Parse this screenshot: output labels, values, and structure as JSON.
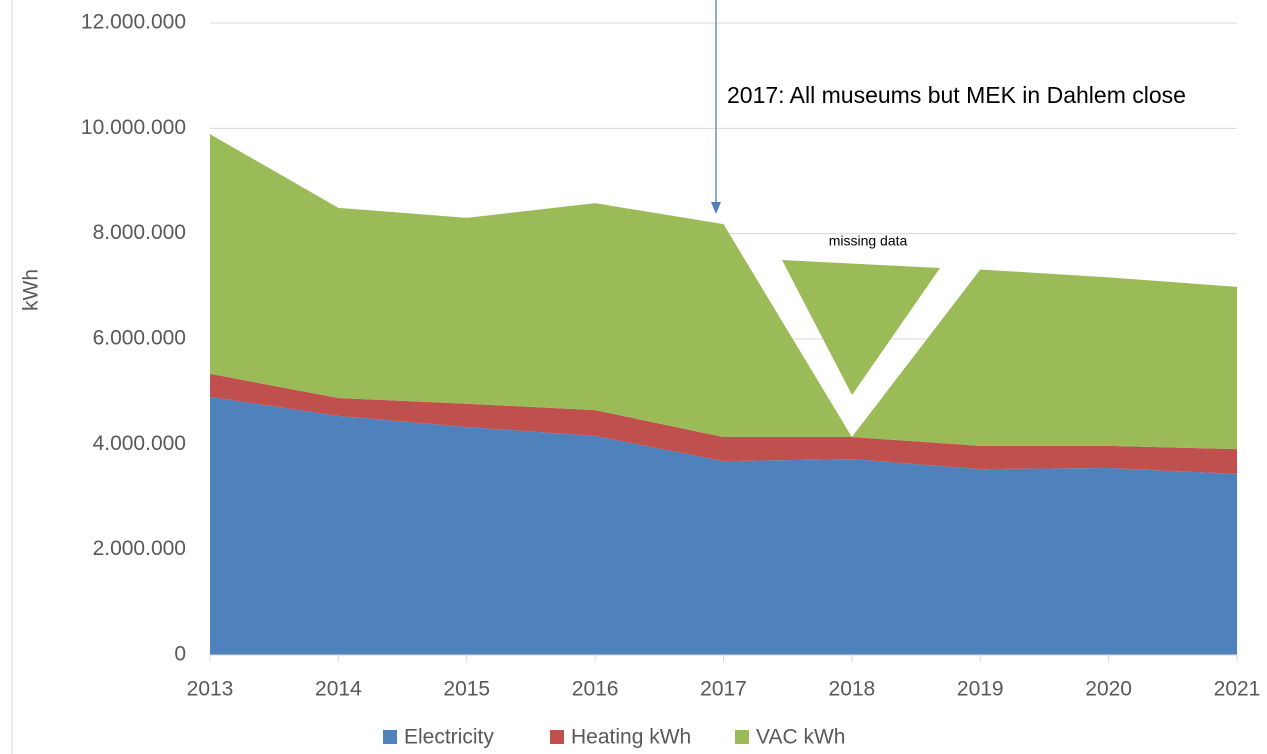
{
  "chart_data": {
    "type": "area",
    "stacked": true,
    "y_label": "kWh",
    "annotation": "2017: All museums but MEK in Dahlem close",
    "missing_note": "missing data",
    "categories": [
      "2013",
      "2014",
      "2015",
      "2016",
      "2017",
      "2018",
      "2019",
      "2020",
      "2021"
    ],
    "series": [
      {
        "name": "Electricity",
        "color": "#4f81bd",
        "values": [
          4900000,
          4540000,
          4330000,
          4160000,
          3680000,
          3720000,
          3530000,
          3550000,
          3440000
        ]
      },
      {
        "name": "Heating kWh",
        "color": "#c0504d",
        "values": [
          440000,
          340000,
          440000,
          490000,
          460000,
          420000,
          440000,
          420000,
          470000
        ]
      },
      {
        "name": "VAC kWh",
        "color": "#9bbb59",
        "values": [
          4550000,
          3610000,
          3530000,
          3930000,
          4040000,
          0,
          3350000,
          3200000,
          3080000
        ]
      }
    ],
    "ylim": [
      0,
      12000000
    ],
    "yticks": [
      0,
      {
        "value": 2000000,
        "label": "2.000.000"
      },
      {
        "value": 4000000,
        "label": "4.000.000"
      },
      {
        "value": 6000000,
        "label": "6.000.000"
      },
      {
        "value": 8000000,
        "label": "8.000.000"
      },
      {
        "value": 10000000,
        "label": "10.000.000"
      },
      {
        "value": 12000000,
        "label": "12.000.000"
      }
    ],
    "grid": true
  }
}
